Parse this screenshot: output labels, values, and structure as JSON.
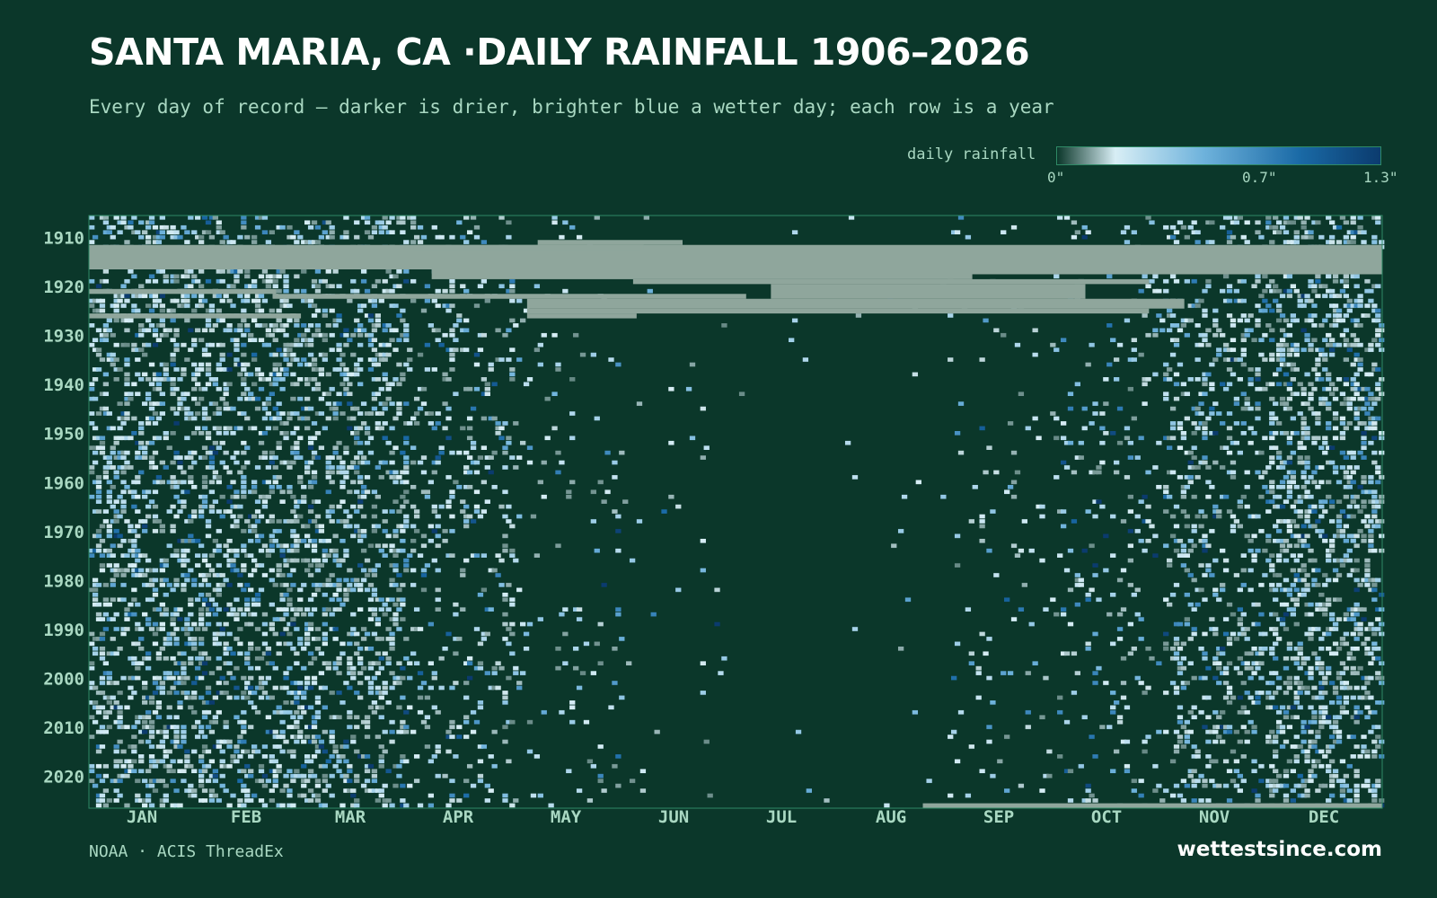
{
  "header": {
    "title": "SANTA MARIA, CA ·DAILY RAINFALL 1906–2026",
    "subtitle": "Every day of record — darker is drier, brighter blue a wetter day; each row is a year"
  },
  "legend": {
    "label": "daily rainfall",
    "ticks": [
      "0\"",
      "0.7\"",
      "1.3\""
    ],
    "tick_values": [
      0,
      0.7,
      1.3
    ],
    "colors": [
      "#0b372a",
      "#d8eef5",
      "#6fb3dc",
      "#1a6aa6",
      "#0b3b6e"
    ]
  },
  "footer": {
    "source": "NOAA · ACIS ThreadEx",
    "brand": "wettestsince.com"
  },
  "colors": {
    "background": "#0b372a",
    "missing": "#8fa69c",
    "frame": "#2f8a66",
    "axis_text": "#a9d8c2"
  },
  "chart_data": {
    "type": "heatmap",
    "title": "SANTA MARIA, CA ·DAILY RAINFALL 1906–2026",
    "x_axis": {
      "unit": "day of year",
      "range": [
        1,
        366
      ],
      "tick_labels": [
        "JAN",
        "FEB",
        "MAR",
        "APR",
        "MAY",
        "JUN",
        "JUL",
        "AUG",
        "SEP",
        "OCT",
        "NOV",
        "DEC"
      ]
    },
    "y_axis": {
      "unit": "year",
      "range": [
        1906,
        2026
      ],
      "tick_labels": [
        "1910",
        "1920",
        "1930",
        "1940",
        "1950",
        "1960",
        "1970",
        "1980",
        "1990",
        "2000",
        "2010",
        "2020"
      ],
      "tick_values": [
        1910,
        1920,
        1930,
        1940,
        1950,
        1960,
        1970,
        1980,
        1990,
        2000,
        2010,
        2020
      ]
    },
    "value_unit": "inches",
    "value_range": [
      0,
      1.3
    ],
    "wet_season": {
      "rain_day_probability_by_month": [
        0.3,
        0.28,
        0.26,
        0.13,
        0.04,
        0.01,
        0.004,
        0.004,
        0.03,
        0.07,
        0.18,
        0.3
      ]
    },
    "missing_blocks": [
      {
        "years": [
          1912,
          1916
        ],
        "days": [
          1,
          366
        ]
      },
      {
        "years": [
          1911,
          1911
        ],
        "days": [
          128,
          168
        ]
      },
      {
        "years": [
          1912,
          1912
        ],
        "days": [
          93,
          157
        ]
      },
      {
        "years": [
          1913,
          1917
        ],
        "days": [
          157,
          366
        ]
      },
      {
        "years": [
          1917,
          1918
        ],
        "days": [
          98,
          250
        ]
      },
      {
        "years": [
          1919,
          1919
        ],
        "days": [
          155,
          300
        ]
      },
      {
        "years": [
          1920,
          1922
        ],
        "days": [
          194,
          282
        ]
      },
      {
        "years": [
          1921,
          1921
        ],
        "days": [
          1,
          53
        ]
      },
      {
        "years": [
          1922,
          1922
        ],
        "days": [
          53,
          186
        ]
      },
      {
        "years": [
          1923,
          1924
        ],
        "days": [
          125,
          310
        ]
      },
      {
        "years": [
          1925,
          1925
        ],
        "days": [
          125,
          300
        ]
      },
      {
        "years": [
          1926,
          1926
        ],
        "days": [
          1,
          60
        ]
      },
      {
        "years": [
          1926,
          1926
        ],
        "days": [
          125,
          155
        ]
      },
      {
        "years": [
          2026,
          2026
        ],
        "days": [
          237,
          366
        ]
      }
    ]
  }
}
